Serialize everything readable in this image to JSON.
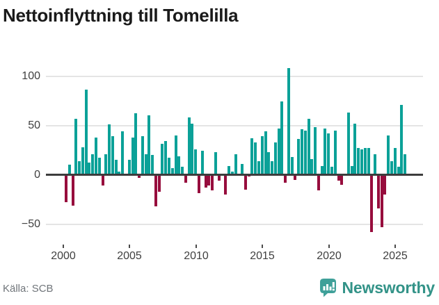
{
  "title": "Nettoinflyttning till Tomelilla",
  "source": "Källa: SCB",
  "brand": {
    "name": "Newsworthy",
    "icon": "bar-chart-speech-bubble-icon"
  },
  "colors": {
    "positive_bar": "#0ba198",
    "negative_bar": "#970d3d",
    "gridline": "#e4e4e4",
    "zero_axis": "#3d3d3d",
    "axis_text": "#3f3f3f",
    "title_text": "#1a1a1a",
    "source_text": "#70757a",
    "brand_teal": "#339388",
    "brand_icon_teal": "#3fa099"
  },
  "chart_data": {
    "type": "bar",
    "title": "Nettoinflyttning till Tomelilla",
    "xlabel": "",
    "ylabel": "",
    "frequency": "quarterly",
    "start_period": "2000-Q1",
    "end_period": "2025-Q3",
    "x_tick_labels": [
      "2000",
      "2005",
      "2010",
      "2015",
      "2020",
      "2025"
    ],
    "y_ticks": [
      100,
      50,
      0,
      -50
    ],
    "y_tick_labels": [
      "100",
      "50",
      "0",
      "−50"
    ],
    "ylim": [
      -65,
      117
    ],
    "grid": "horizontal",
    "legend": "none",
    "series": [
      {
        "name": "Nettoinflyttning",
        "values": [
          -28,
          10,
          -31,
          57,
          14,
          28,
          86,
          12,
          21,
          38,
          17,
          -11,
          21,
          51,
          39,
          15,
          3,
          44,
          0,
          15,
          38,
          62,
          -3,
          39,
          21,
          60,
          20,
          -32,
          -17,
          31,
          34,
          17,
          7,
          40,
          19,
          8,
          -8,
          58,
          52,
          26,
          -19,
          24,
          -13,
          -11,
          -16,
          23,
          -6,
          0,
          -20,
          9,
          3,
          21,
          0,
          11,
          -15,
          -2,
          37,
          33,
          14,
          39,
          44,
          23,
          14,
          33,
          47,
          74,
          -8,
          108,
          18,
          -5,
          36,
          46,
          45,
          57,
          16,
          48,
          -16,
          9,
          47,
          42,
          8,
          45,
          -6,
          -10,
          0,
          63,
          9,
          52,
          27,
          26,
          27,
          27,
          -58,
          21,
          -34,
          -53,
          -20,
          40,
          14,
          27,
          8,
          71,
          21
        ]
      }
    ]
  }
}
